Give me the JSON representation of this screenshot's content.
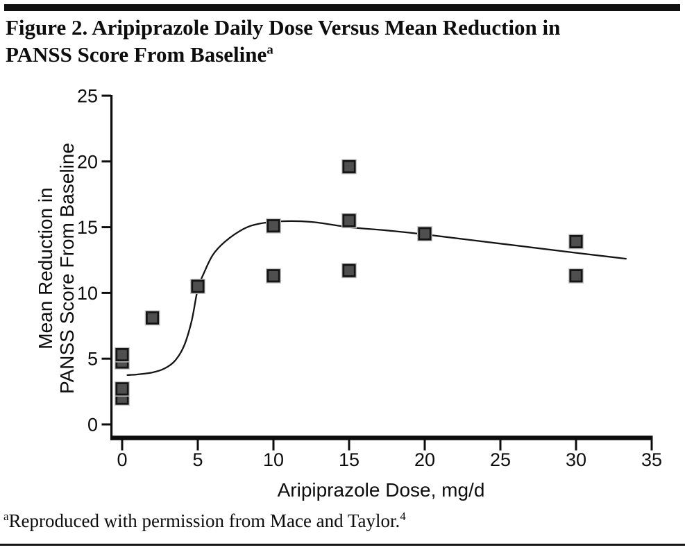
{
  "title": {
    "line1": "Figure 2. Aripiprazole Daily Dose Versus Mean Reduction in",
    "line2": "PANSS Score From Baseline",
    "superscript": "a"
  },
  "footnote": {
    "superscript": "a",
    "text": "Reproduced with permission from Mace and Taylor.",
    "reference_superscript": "4"
  },
  "chart_data": {
    "type": "scatter",
    "title": "Figure 2. Aripiprazole Daily Dose Versus Mean Reduction in PANSS Score From Baseline",
    "xlabel": "Aripiprazole Dose, mg/d",
    "ylabel": "Mean Reduction in PANSS Score From Baseline",
    "ylabel_line1": "Mean Reduction in",
    "ylabel_line2": "PANSS Score From Baseline",
    "xlim": [
      0,
      35
    ],
    "ylim": [
      0,
      25
    ],
    "x_ticks": [
      0,
      5,
      10,
      15,
      20,
      25,
      30,
      35
    ],
    "y_ticks": [
      0,
      5,
      10,
      15,
      20,
      25
    ],
    "grid": false,
    "legend": null,
    "marker": {
      "shape": "square",
      "fill": "#4f4f4f",
      "border": "#141414",
      "halo": "#c8c8c8"
    },
    "axis_color": "#0d0d0d",
    "points": [
      [
        0,
        4.75
      ],
      [
        0,
        5.3
      ],
      [
        0,
        2.0
      ],
      [
        0,
        2.7
      ],
      [
        2,
        8.1
      ],
      [
        5,
        10.5
      ],
      [
        10,
        15.1
      ],
      [
        10,
        11.3
      ],
      [
        15,
        19.6
      ],
      [
        15,
        15.5
      ],
      [
        15,
        11.7
      ],
      [
        20,
        14.5
      ],
      [
        30,
        13.9
      ],
      [
        30,
        11.3
      ]
    ],
    "fit_curve": [
      [
        0.35,
        3.75
      ],
      [
        1,
        3.8
      ],
      [
        2,
        3.95
      ],
      [
        2.8,
        4.25
      ],
      [
        3.5,
        4.85
      ],
      [
        4.1,
        6.0
      ],
      [
        4.6,
        7.9
      ],
      [
        5,
        10.3
      ],
      [
        5.4,
        11.5
      ],
      [
        6,
        12.9
      ],
      [
        6.8,
        13.9
      ],
      [
        8,
        14.85
      ],
      [
        9,
        15.25
      ],
      [
        10.5,
        15.45
      ],
      [
        12.5,
        15.4
      ],
      [
        15,
        15.0
      ],
      [
        17.5,
        14.75
      ],
      [
        20,
        14.45
      ],
      [
        25,
        13.75
      ],
      [
        30,
        13.05
      ],
      [
        33.3,
        12.6
      ]
    ]
  }
}
